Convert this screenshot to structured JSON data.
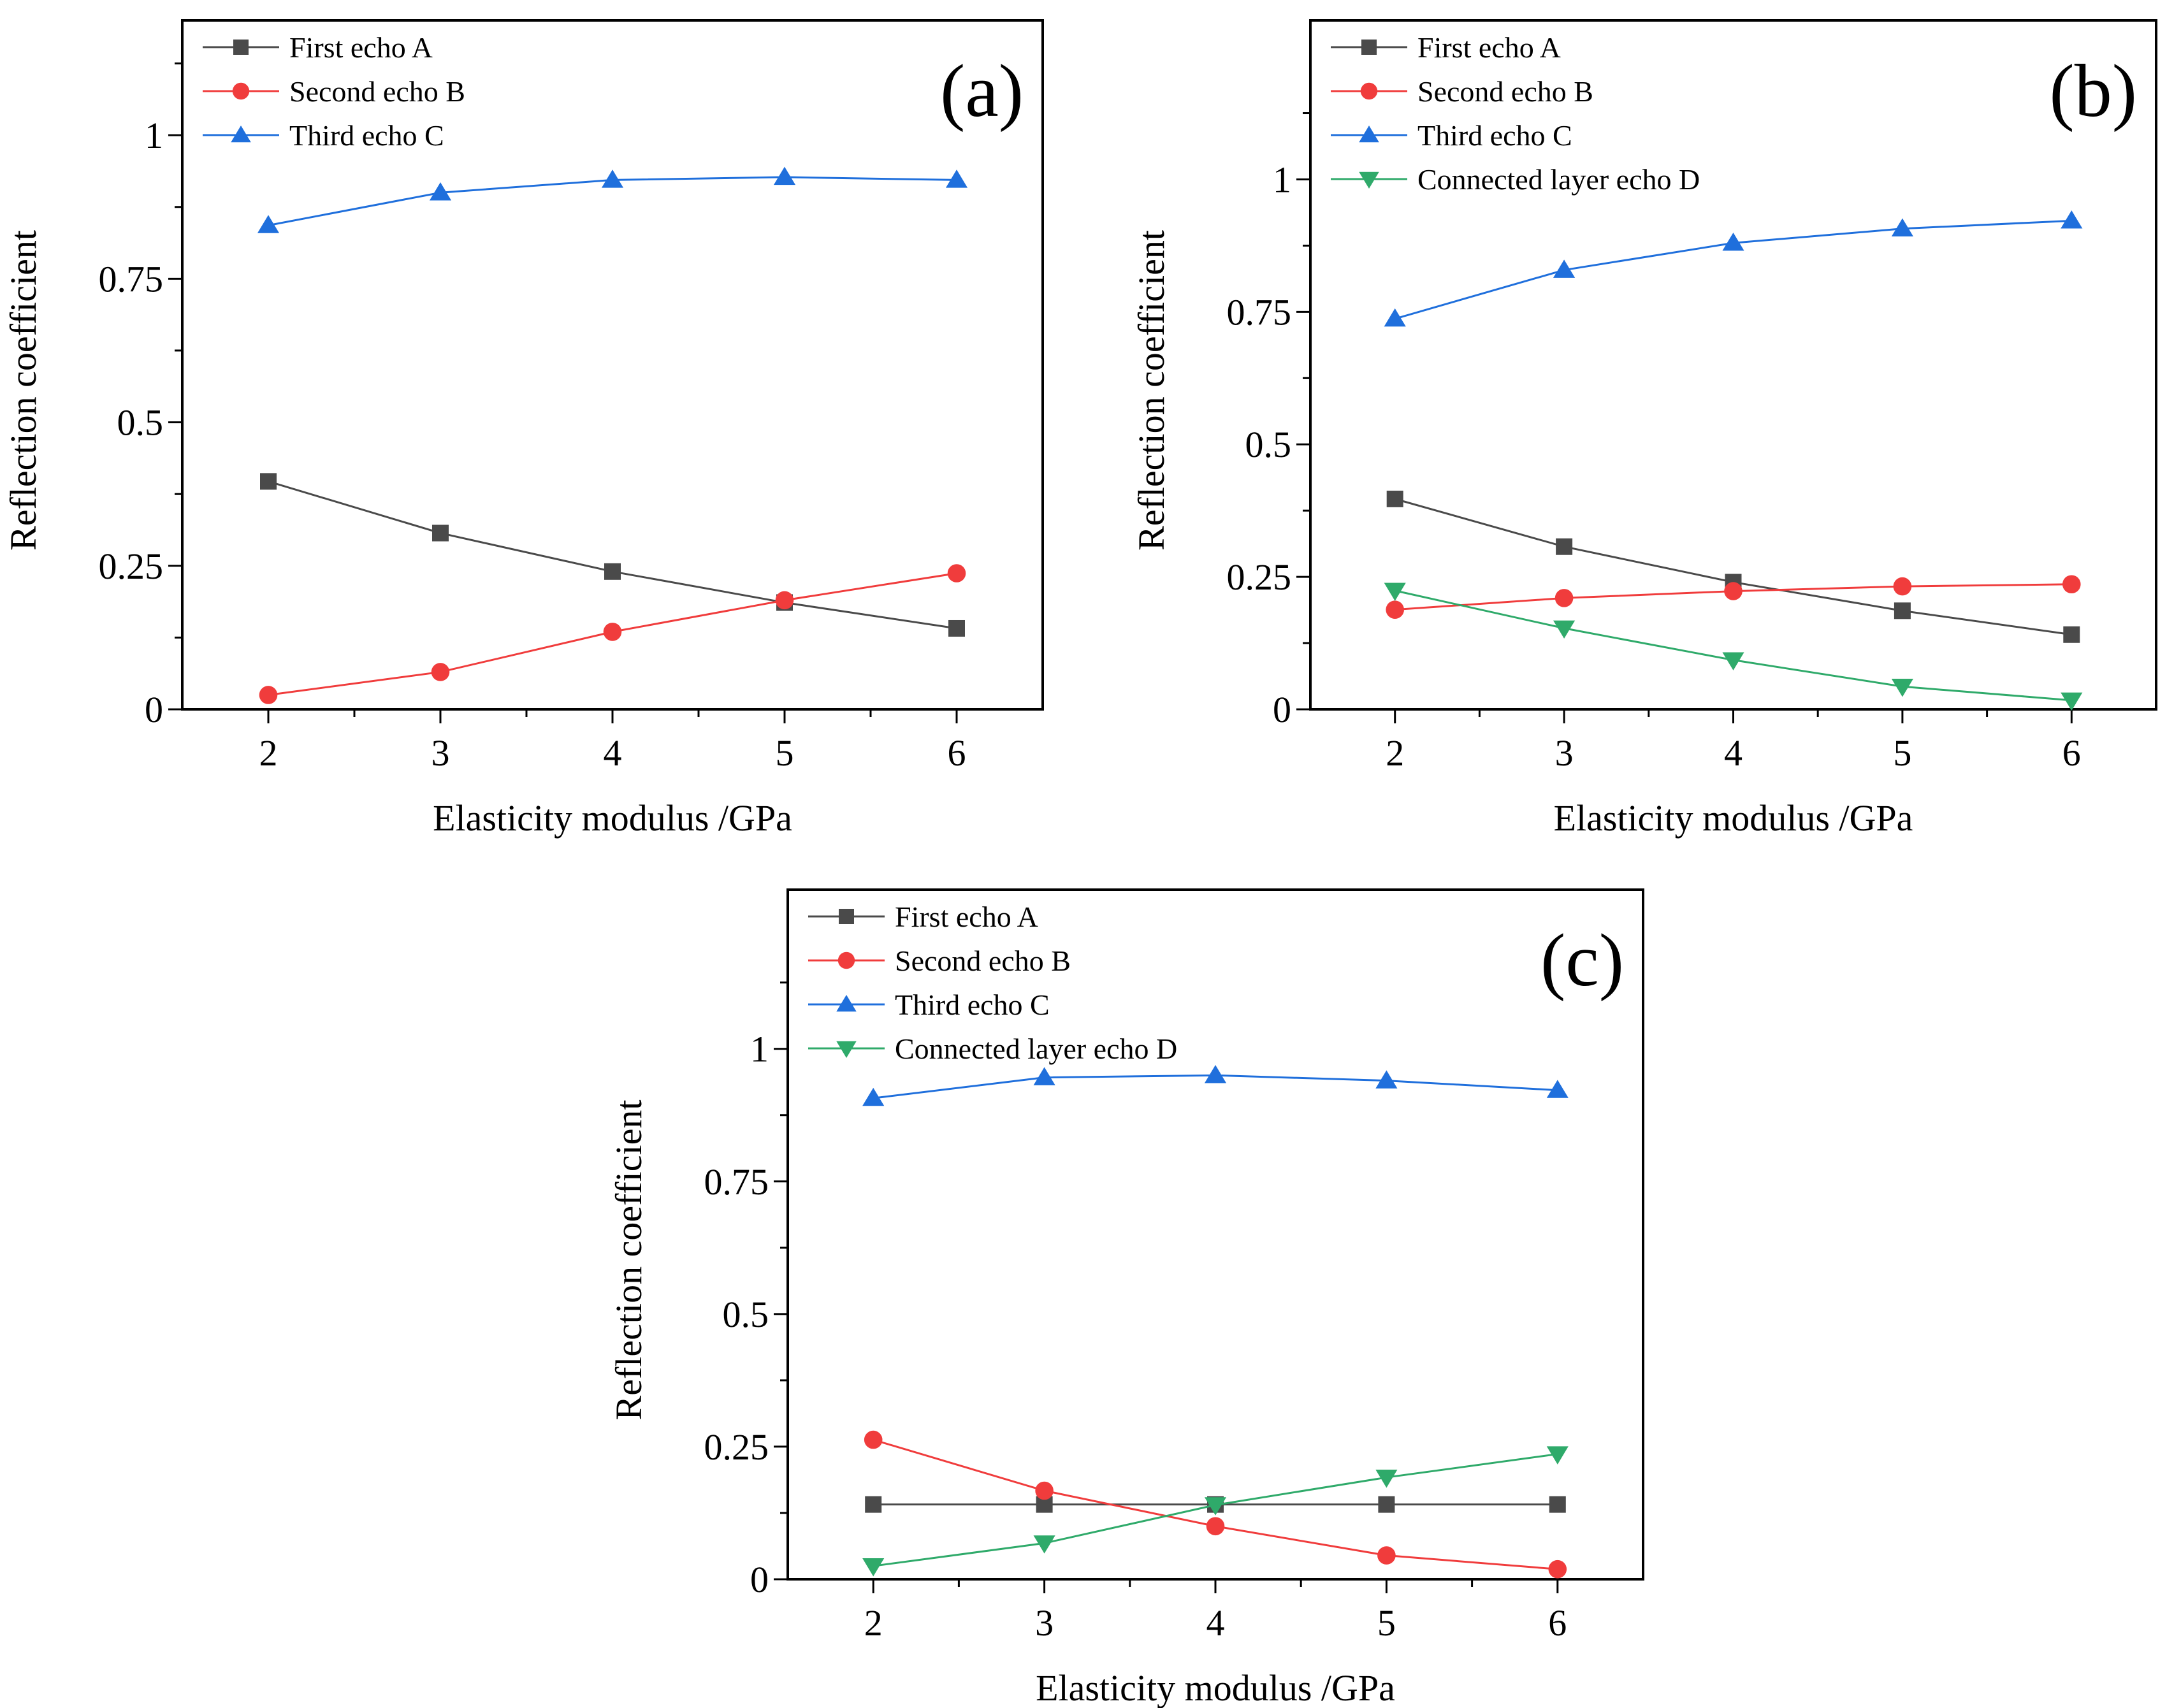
{
  "colors": {
    "first_echo": "#4a4a4a",
    "second_echo": "#f03c3c",
    "third_echo": "#1f6fdc",
    "connected_layer_echo": "#2faa6a"
  },
  "chart_data": [
    {
      "type": "line",
      "panel_label": "(a)",
      "xlabel": "Elasticity modulus /GPa",
      "ylabel": "Reflection coefficient",
      "x": [
        2,
        3,
        4,
        5,
        6
      ],
      "xlim": [
        1.5,
        6.5
      ],
      "ylim": [
        0,
        1.2
      ],
      "xticks": [
        "2",
        "3",
        "4",
        "5",
        "6"
      ],
      "yticks": [
        "0",
        "0.25",
        "0.5",
        "0.75",
        "1"
      ],
      "legend_position": "top-left",
      "series": [
        {
          "name": "First echo A",
          "marker": "square",
          "color": "#4a4a4a",
          "values": [
            0.397,
            0.307,
            0.24,
            0.186,
            0.141
          ]
        },
        {
          "name": "Second echo B",
          "marker": "circle",
          "color": "#f03c3c",
          "values": [
            0.025,
            0.065,
            0.135,
            0.19,
            0.237
          ]
        },
        {
          "name": "Third echo C",
          "marker": "triangle-up",
          "color": "#1f6fdc",
          "values": [
            0.843,
            0.9,
            0.922,
            0.927,
            0.922
          ]
        }
      ]
    },
    {
      "type": "line",
      "panel_label": "(b)",
      "xlabel": "Elasticity modulus /GPa",
      "ylabel": "Reflection coefficient",
      "x": [
        2,
        3,
        4,
        5,
        6
      ],
      "xlim": [
        1.5,
        6.5
      ],
      "ylim": [
        0,
        1.3
      ],
      "xticks": [
        "2",
        "3",
        "4",
        "5",
        "6"
      ],
      "yticks": [
        "0",
        "0.25",
        "0.5",
        "0.75",
        "1"
      ],
      "legend_position": "top-left",
      "series": [
        {
          "name": "First echo A",
          "marker": "square",
          "color": "#4a4a4a",
          "values": [
            0.397,
            0.307,
            0.24,
            0.186,
            0.141
          ]
        },
        {
          "name": "Second echo B",
          "marker": "circle",
          "color": "#f03c3c",
          "values": [
            0.188,
            0.21,
            0.223,
            0.232,
            0.236
          ]
        },
        {
          "name": "Third echo C",
          "marker": "triangle-up",
          "color": "#1f6fdc",
          "values": [
            0.737,
            0.829,
            0.88,
            0.907,
            0.922
          ]
        },
        {
          "name": "Connected layer echo D",
          "marker": "triangle-down",
          "color": "#2faa6a",
          "values": [
            0.224,
            0.153,
            0.093,
            0.043,
            0.017
          ]
        }
      ]
    },
    {
      "type": "line",
      "panel_label": "(c)",
      "xlabel": "Elasticity modulus /GPa",
      "ylabel": "Reflection coefficient",
      "x": [
        2,
        3,
        4,
        5,
        6
      ],
      "xlim": [
        1.5,
        6.5
      ],
      "ylim": [
        0,
        1.3
      ],
      "xticks": [
        "2",
        "3",
        "4",
        "5",
        "6"
      ],
      "yticks": [
        "0",
        "0.25",
        "0.5",
        "0.75",
        "1"
      ],
      "legend_position": "top-left",
      "series": [
        {
          "name": "First echo A",
          "marker": "square",
          "color": "#4a4a4a",
          "values": [
            0.141,
            0.141,
            0.141,
            0.141,
            0.141
          ]
        },
        {
          "name": "Second echo B",
          "marker": "circle",
          "color": "#f03c3c",
          "values": [
            0.263,
            0.167,
            0.1,
            0.045,
            0.019
          ]
        },
        {
          "name": "Third echo C",
          "marker": "triangle-up",
          "color": "#1f6fdc",
          "values": [
            0.907,
            0.946,
            0.95,
            0.94,
            0.922
          ]
        },
        {
          "name": "Connected layer echo D",
          "marker": "triangle-down",
          "color": "#2faa6a",
          "values": [
            0.025,
            0.068,
            0.14,
            0.192,
            0.236
          ]
        }
      ]
    }
  ]
}
